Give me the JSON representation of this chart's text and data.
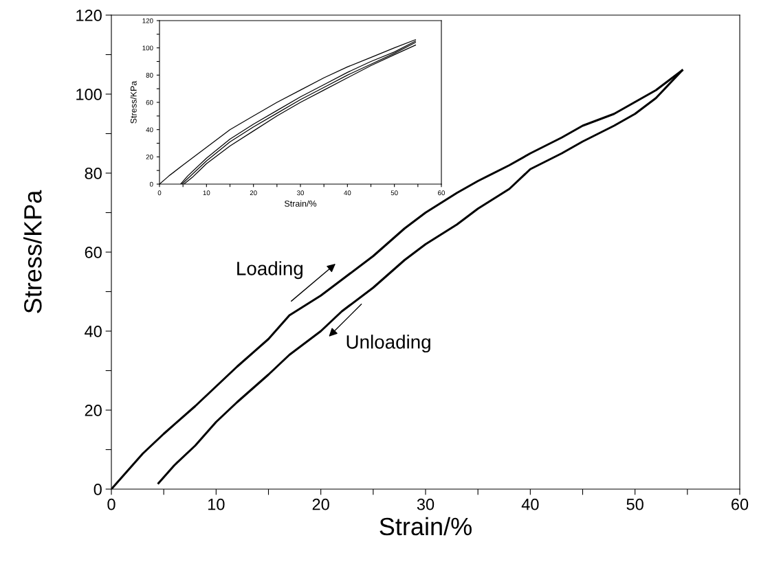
{
  "chart_data": [
    {
      "type": "line",
      "xlabel": "Strain/%",
      "ylabel": "Stress/KPa",
      "xlim": [
        0,
        60
      ],
      "ylim": [
        0,
        120
      ],
      "xticks": [
        0,
        {
          "value": 5,
          "label": null
        },
        10,
        {
          "value": 15,
          "label": null
        },
        20,
        {
          "value": 25,
          "label": null
        },
        30,
        {
          "value": 35,
          "label": null
        },
        40,
        {
          "value": 45,
          "label": null
        },
        50,
        {
          "value": 55,
          "label": null
        },
        60
      ],
      "yticks": [
        0,
        {
          "value": 10,
          "label": null
        },
        20,
        {
          "value": 30,
          "label": null
        },
        40,
        {
          "value": 50,
          "label": null
        },
        60,
        {
          "value": 70,
          "label": null
        },
        80,
        {
          "value": 90,
          "label": null
        },
        100,
        {
          "value": 110,
          "label": null
        },
        120
      ],
      "grid": false,
      "legend": false,
      "marker": "none",
      "line_style": "solid",
      "series": [
        {
          "color": "#000000",
          "x": [
            0,
            1,
            2,
            3,
            5,
            8,
            12,
            15,
            17,
            20,
            22,
            25,
            28,
            30,
            33,
            35,
            38,
            40,
            43,
            45,
            48,
            50,
            52,
            54.5
          ],
          "values": [
            0,
            3,
            6,
            9,
            14,
            21,
            31,
            38,
            44,
            49,
            53,
            59,
            66,
            70,
            75,
            78,
            82,
            85,
            89,
            92,
            95,
            98,
            101,
            106
          ]
        },
        {
          "color": "#000000",
          "x": [
            54.5,
            52,
            50,
            48,
            45,
            43,
            40,
            38,
            35,
            33,
            30,
            28,
            25,
            22,
            20,
            17,
            15,
            12,
            10,
            8,
            6,
            4.5
          ],
          "values": [
            106,
            99,
            95,
            92,
            88,
            85,
            81,
            76,
            71,
            67,
            62,
            58,
            51,
            45,
            40,
            34,
            29,
            22,
            17,
            11,
            6,
            1.5
          ]
        }
      ],
      "annotations": [
        "Loading",
        "Unloading"
      ]
    },
    {
      "type": "line",
      "xlabel": "Strain/%",
      "ylabel": "Stress/KPa",
      "xlim": [
        0,
        60
      ],
      "ylim": [
        0,
        120
      ],
      "xticks": [
        0,
        {
          "value": 5,
          "label": null
        },
        10,
        {
          "value": 15,
          "label": null
        },
        20,
        {
          "value": 25,
          "label": null
        },
        30,
        {
          "value": 35,
          "label": null
        },
        40,
        {
          "value": 45,
          "label": null
        },
        50,
        {
          "value": 55,
          "label": null
        },
        60
      ],
      "yticks": [
        0,
        {
          "value": 10,
          "label": null
        },
        20,
        {
          "value": 30,
          "label": null
        },
        40,
        {
          "value": 50,
          "label": null
        },
        60,
        {
          "value": 70,
          "label": null
        },
        80,
        {
          "value": 90,
          "label": null
        },
        100,
        {
          "value": 110,
          "label": null
        },
        120
      ],
      "grid": false,
      "legend": false,
      "marker": "none",
      "line_style": "solid",
      "series": [
        {
          "color": "#000000",
          "x": [
            0,
            2,
            5,
            10,
            15,
            20,
            25,
            30,
            35,
            40,
            45,
            50,
            54.5
          ],
          "values": [
            0,
            6,
            14,
            27,
            40,
            50,
            60,
            69,
            78,
            86,
            93,
            100,
            106
          ]
        },
        {
          "color": "#000000",
          "x": [
            4.5,
            6,
            10,
            15,
            20,
            25,
            30,
            35,
            40,
            45,
            50,
            54.5
          ],
          "values": [
            0,
            6,
            19,
            33,
            44,
            54,
            64,
            73,
            82,
            90,
            97,
            105
          ]
        },
        {
          "color": "#000000",
          "x": [
            4.8,
            6,
            10,
            15,
            20,
            25,
            30,
            35,
            40,
            45,
            50,
            54.5
          ],
          "values": [
            0,
            4,
            17,
            31,
            42,
            52,
            62,
            71,
            80,
            88,
            96,
            104
          ]
        },
        {
          "color": "#000000",
          "x": [
            5.2,
            7,
            10,
            15,
            20,
            25,
            30,
            35,
            40,
            45,
            50,
            54.5
          ],
          "values": [
            0,
            5,
            15,
            28,
            39,
            50,
            60,
            69,
            78,
            87,
            95,
            102
          ]
        }
      ]
    }
  ]
}
